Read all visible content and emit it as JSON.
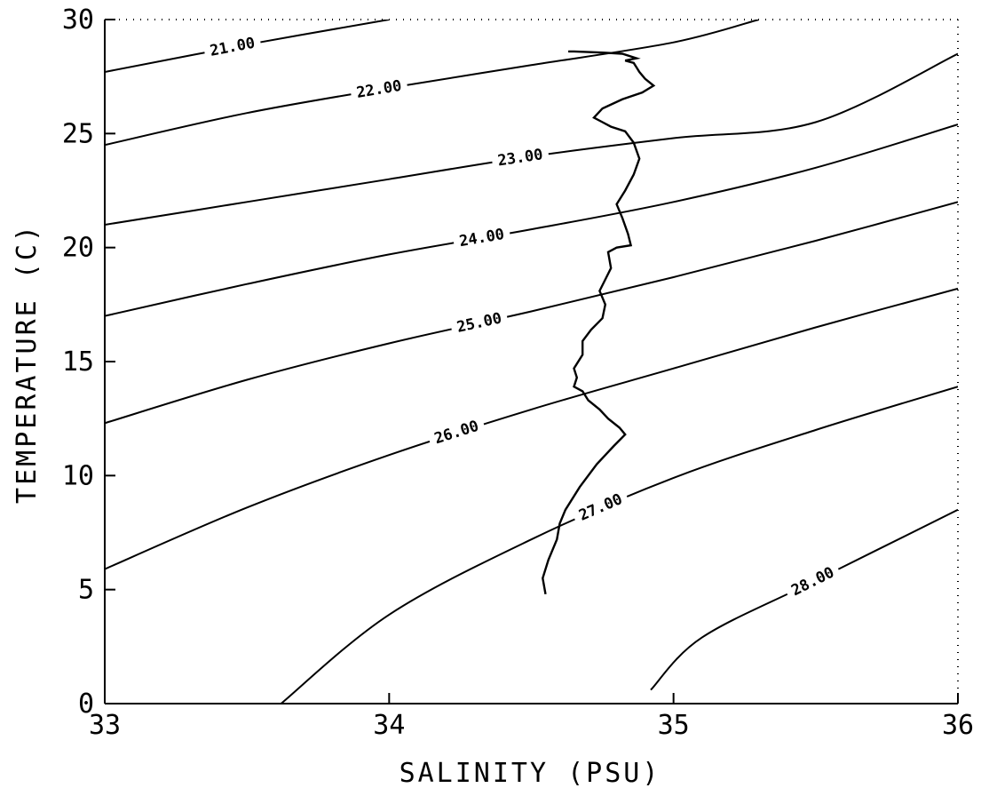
{
  "chart_data": {
    "type": "line",
    "title": "",
    "xlabel": "SALINITY (PSU)",
    "ylabel": "TEMPERATURE (C)",
    "xlim": [
      33,
      36
    ],
    "ylim": [
      0,
      30
    ],
    "xticks": [
      33,
      34,
      35,
      36
    ],
    "yticks": [
      0,
      5,
      10,
      15,
      20,
      25,
      30
    ],
    "grid": false,
    "legend": "none",
    "density_contours": [
      {
        "label": "21.00",
        "points": [
          [
            33.0,
            27.7
          ],
          [
            33.5,
            28.9
          ],
          [
            34.0,
            30.0
          ]
        ]
      },
      {
        "label": "22.00",
        "points": [
          [
            33.0,
            24.5
          ],
          [
            33.5,
            25.9
          ],
          [
            34.0,
            27.0
          ],
          [
            34.5,
            28.0
          ],
          [
            35.0,
            29.0
          ],
          [
            35.3,
            30.0
          ]
        ]
      },
      {
        "label": "23.00",
        "points": [
          [
            33.0,
            21.0
          ],
          [
            33.5,
            22.0
          ],
          [
            34.0,
            23.0
          ],
          [
            34.5,
            24.0
          ],
          [
            35.0,
            24.8
          ],
          [
            35.5,
            25.5
          ],
          [
            36.0,
            28.5
          ]
        ]
      },
      {
        "label": "24.00",
        "points": [
          [
            33.0,
            17.0
          ],
          [
            33.5,
            18.4
          ],
          [
            34.0,
            19.7
          ],
          [
            34.5,
            20.8
          ],
          [
            35.0,
            22.0
          ],
          [
            35.5,
            23.5
          ],
          [
            36.0,
            25.4
          ]
        ]
      },
      {
        "label": "25.00",
        "points": [
          [
            33.0,
            12.3
          ],
          [
            33.5,
            14.2
          ],
          [
            34.0,
            15.8
          ],
          [
            34.5,
            17.2
          ],
          [
            35.0,
            18.7
          ],
          [
            35.5,
            20.3
          ],
          [
            36.0,
            22.0
          ]
        ]
      },
      {
        "label": "26.00",
        "points": [
          [
            33.0,
            5.9
          ],
          [
            33.5,
            8.6
          ],
          [
            34.0,
            10.9
          ],
          [
            34.5,
            12.9
          ],
          [
            35.0,
            14.7
          ],
          [
            35.5,
            16.5
          ],
          [
            36.0,
            18.2
          ]
        ]
      },
      {
        "label": "27.00",
        "points": [
          [
            33.62,
            0.0
          ],
          [
            34.0,
            3.9
          ],
          [
            34.5,
            7.2
          ],
          [
            35.0,
            9.9
          ],
          [
            35.5,
            12.0
          ],
          [
            36.0,
            13.9
          ]
        ]
      },
      {
        "label": "28.00",
        "points": [
          [
            34.92,
            0.6
          ],
          [
            35.1,
            2.9
          ],
          [
            35.5,
            5.4
          ],
          [
            36.0,
            8.5
          ]
        ]
      }
    ],
    "series": [
      {
        "values": [
          [
            34.55,
            4.8
          ],
          [
            34.54,
            5.5
          ],
          [
            34.56,
            6.3
          ],
          [
            34.59,
            7.2
          ],
          [
            34.6,
            7.9
          ],
          [
            34.62,
            8.5
          ],
          [
            34.67,
            9.5
          ],
          [
            34.73,
            10.5
          ],
          [
            34.79,
            11.3
          ],
          [
            34.83,
            11.8
          ],
          [
            34.81,
            12.1
          ],
          [
            34.77,
            12.5
          ],
          [
            34.74,
            12.9
          ],
          [
            34.7,
            13.3
          ],
          [
            34.68,
            13.7
          ],
          [
            34.65,
            13.9
          ],
          [
            34.66,
            14.3
          ],
          [
            34.65,
            14.7
          ],
          [
            34.68,
            15.3
          ],
          [
            34.68,
            15.9
          ],
          [
            34.71,
            16.4
          ],
          [
            34.75,
            16.9
          ],
          [
            34.76,
            17.5
          ],
          [
            34.74,
            18.1
          ],
          [
            34.76,
            18.6
          ],
          [
            34.78,
            19.1
          ],
          [
            34.77,
            19.8
          ],
          [
            34.8,
            20.0
          ],
          [
            34.85,
            20.1
          ],
          [
            34.84,
            20.6
          ],
          [
            34.82,
            21.3
          ],
          [
            34.8,
            21.9
          ],
          [
            34.83,
            22.5
          ],
          [
            34.86,
            23.2
          ],
          [
            34.88,
            23.9
          ],
          [
            34.86,
            24.6
          ],
          [
            34.83,
            25.1
          ],
          [
            34.78,
            25.3
          ],
          [
            34.75,
            25.5
          ],
          [
            34.72,
            25.7
          ],
          [
            34.75,
            26.1
          ],
          [
            34.82,
            26.5
          ],
          [
            34.89,
            26.8
          ],
          [
            34.93,
            27.1
          ],
          [
            34.9,
            27.4
          ],
          [
            34.88,
            27.7
          ],
          [
            34.87,
            27.9
          ],
          [
            34.86,
            28.1
          ],
          [
            34.83,
            28.2
          ],
          [
            34.87,
            28.3
          ],
          [
            34.82,
            28.5
          ],
          [
            34.75,
            28.55
          ],
          [
            34.65,
            28.6
          ],
          [
            34.63,
            28.6
          ]
        ]
      }
    ]
  }
}
